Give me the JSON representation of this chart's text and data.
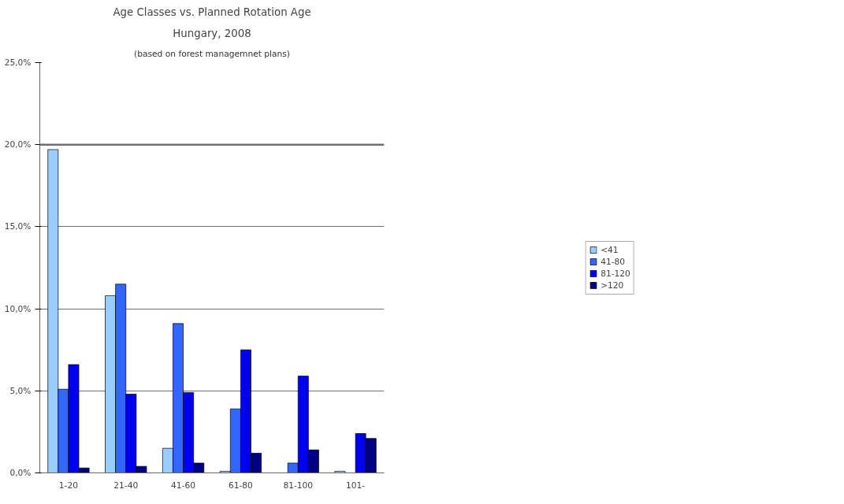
{
  "chart_data": {
    "type": "bar",
    "title": "Age Classes vs. Planned Rotation Age",
    "subtitle": "Hungary, 2008",
    "annotations": [
      "(based on forest managemnet plans)"
    ],
    "categories": [
      "1-20",
      "21-40",
      "41-60",
      "61-80",
      "81-100",
      "101-"
    ],
    "series": [
      {
        "name": "<41",
        "color": "#99ccff",
        "values": [
          19.7,
          10.8,
          1.5,
          0.1,
          null,
          0.1
        ]
      },
      {
        "name": "41-80",
        "color": "#3366ff",
        "values": [
          5.1,
          11.5,
          9.1,
          3.9,
          0.6,
          null
        ]
      },
      {
        "name": "81-120",
        "color": "#0000ee",
        "values": [
          6.6,
          4.8,
          4.9,
          7.5,
          5.9,
          2.4
        ]
      },
      {
        "name": ">120",
        "color": "#000080",
        "values": [
          0.3,
          0.4,
          0.6,
          1.2,
          1.4,
          2.1
        ]
      }
    ],
    "ylim": [
      0,
      25
    ],
    "yticks": [
      {
        "value": 0,
        "label": "0,0%"
      },
      {
        "value": 5,
        "label": "5,0%"
      },
      {
        "value": 10,
        "label": "10,0%"
      },
      {
        "value": 15,
        "label": "15,0%"
      },
      {
        "value": 20,
        "label": "20,0%"
      },
      {
        "value": 25,
        "label": "25,0%"
      }
    ],
    "ref_lines": [
      {
        "axis": "y",
        "value": 20,
        "label": null,
        "color": "#707070"
      }
    ],
    "grid": "y",
    "legend": "right"
  }
}
